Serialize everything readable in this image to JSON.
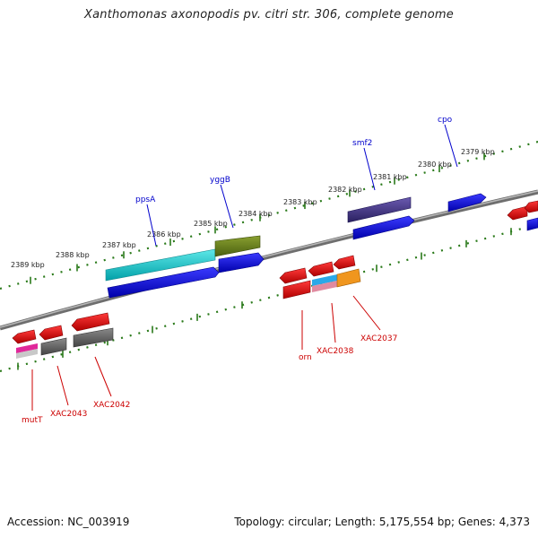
{
  "title": "Xanthomonas axonopodis pv. citri str. 306, complete genome",
  "footer": {
    "accession": "Accession: NC_003919",
    "summary": "Topology: circular; Length: 5,175,554 bp; Genes: 4,373"
  },
  "ruler": {
    "labels": [
      "2389 kbp",
      "2388 kbp",
      "2387 kbp",
      "2386 kbp",
      "2385 kbp",
      "2384 kbp",
      "2383 kbp",
      "2382 kbp",
      "2381 kbp",
      "2380 kbp",
      "2379 kbp"
    ]
  },
  "genes_top": [
    "ppsA",
    "yggB",
    "smf2",
    "cpo"
  ],
  "genes_bottom": [
    "mutT",
    "XAC2043",
    "XAC2042",
    "orn",
    "XAC2038",
    "XAC2037"
  ],
  "colors": {
    "ruler_tick": "#2a7a1a",
    "backbone": "#7a7a7a",
    "top_label": "#0000cc",
    "bottom_label": "#cc0000"
  }
}
